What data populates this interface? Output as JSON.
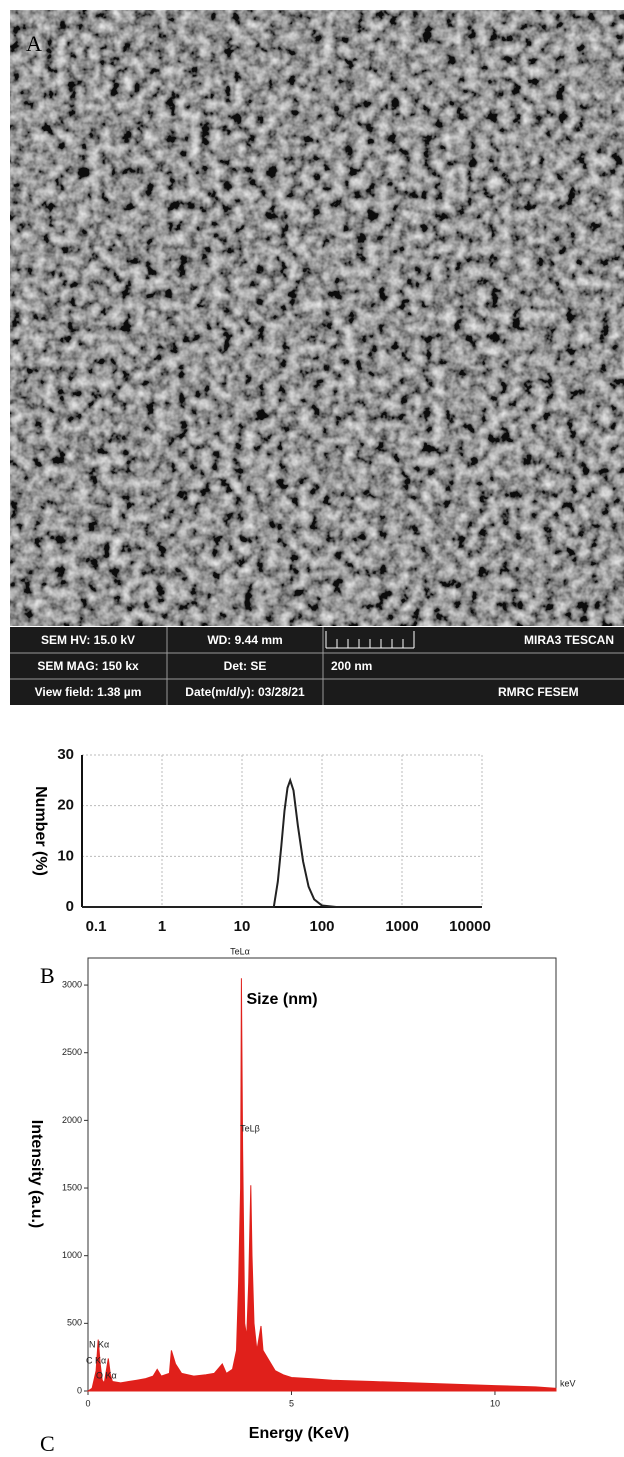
{
  "sem_image": {
    "panel_label": "A",
    "info": [
      [
        "SEM HV: 15.0 kV",
        "WD: 9.44 mm",
        "MIRA3 TESCAN"
      ],
      [
        "SEM MAG: 150 kx",
        "Det: SE",
        "200 nm"
      ],
      [
        "View field: 1.38 µm",
        "Date(m/d/y): 03/28/21",
        "RMRC FESEM"
      ]
    ]
  },
  "chart_data": [
    {
      "type": "line",
      "panel_label": "B",
      "x_label": "Size (nm)",
      "y_label": "Number (%)",
      "log_x": true,
      "grid": true,
      "xlim": [
        0.1,
        10000
      ],
      "xticks": [
        0.1,
        1,
        10,
        100,
        1000,
        10000
      ],
      "ylim": [
        0,
        30
      ],
      "yticks": [
        0,
        10,
        20,
        30
      ],
      "series": [
        {
          "color": "#222222",
          "x": [
            0.1,
            25,
            28,
            31,
            34,
            37,
            40,
            44,
            50,
            58,
            68,
            80,
            100,
            150,
            10000
          ],
          "values": [
            0,
            0,
            5,
            12,
            19,
            23.5,
            25,
            23,
            16,
            9,
            4,
            1.5,
            0.3,
            0,
            0
          ]
        }
      ]
    },
    {
      "type": "area",
      "panel_label": "C",
      "x_label": "Energy (KeV)",
      "y_label": "Intensity (a.u.)",
      "x_unit": "keV",
      "xlim": [
        0,
        11.5
      ],
      "xticks": [
        0,
        5,
        10
      ],
      "ylim": [
        0,
        3200
      ],
      "yticks": [
        0,
        500,
        1000,
        1500,
        2000,
        2500,
        3000
      ],
      "annotations": [
        "TeLα",
        "TeLβ",
        "N Kα",
        "C Kα",
        "O Kα"
      ],
      "series": [
        {
          "color": "#e0201b",
          "x": [
            0,
            0.1,
            0.2,
            0.25,
            0.3,
            0.35,
            0.4,
            0.45,
            0.5,
            0.55,
            0.6,
            0.8,
            1.0,
            1.2,
            1.4,
            1.6,
            1.7,
            1.8,
            2.0,
            2.05,
            2.15,
            2.3,
            2.6,
            2.9,
            3.1,
            3.3,
            3.4,
            3.55,
            3.65,
            3.7,
            3.75,
            3.77,
            3.8,
            3.85,
            3.9,
            3.95,
            4.0,
            4.03,
            4.08,
            4.15,
            4.25,
            4.3,
            4.4,
            4.6,
            4.8,
            5.0,
            5.5,
            6,
            7,
            8,
            9,
            10,
            11,
            11.5
          ],
          "values": [
            0,
            20,
            150,
            380,
            200,
            80,
            60,
            150,
            240,
            120,
            70,
            60,
            70,
            80,
            90,
            110,
            160,
            110,
            130,
            300,
            200,
            130,
            110,
            120,
            130,
            200,
            130,
            160,
            300,
            800,
            1500,
            3050,
            1800,
            500,
            400,
            800,
            1520,
            1000,
            500,
            300,
            480,
            300,
            250,
            150,
            120,
            100,
            90,
            80,
            70,
            60,
            50,
            40,
            30,
            20
          ]
        }
      ]
    }
  ]
}
